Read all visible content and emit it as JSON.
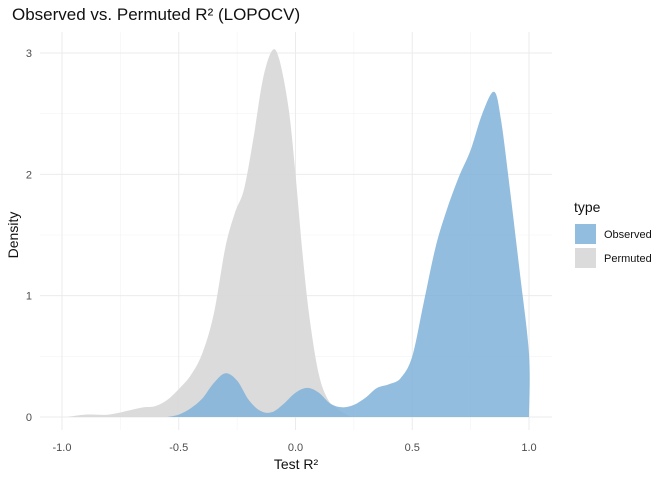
{
  "chart_data": {
    "type": "area",
    "subtype": "density",
    "title": "Observed vs. Permuted R² (LOPOCV)",
    "xlabel": "Test R²",
    "ylabel": "Density",
    "xlim": [
      -1.0,
      1.0
    ],
    "ylim": [
      0,
      3.1
    ],
    "x_ticks": [
      -1.0,
      -0.5,
      0.0,
      0.5,
      1.0
    ],
    "x_tick_labels": [
      "-1.0",
      "-0.5",
      "0.0",
      "0.5",
      "1.0"
    ],
    "y_ticks": [
      0,
      1,
      2,
      3
    ],
    "y_tick_labels": [
      "0",
      "1",
      "2",
      "3"
    ],
    "grid": true,
    "legend": {
      "title": "type",
      "position": "right"
    },
    "series": [
      {
        "name": "Permuted",
        "color": "#d9d9d9",
        "points": [
          [
            -0.98,
            0.0
          ],
          [
            -0.9,
            0.02
          ],
          [
            -0.8,
            0.02
          ],
          [
            -0.7,
            0.06
          ],
          [
            -0.65,
            0.08
          ],
          [
            -0.6,
            0.09
          ],
          [
            -0.55,
            0.14
          ],
          [
            -0.5,
            0.23
          ],
          [
            -0.45,
            0.34
          ],
          [
            -0.4,
            0.52
          ],
          [
            -0.35,
            0.85
          ],
          [
            -0.3,
            1.4
          ],
          [
            -0.26,
            1.68
          ],
          [
            -0.22,
            1.88
          ],
          [
            -0.18,
            2.3
          ],
          [
            -0.14,
            2.78
          ],
          [
            -0.1,
            3.02
          ],
          [
            -0.07,
            2.95
          ],
          [
            -0.03,
            2.55
          ],
          [
            0.0,
            2.0
          ],
          [
            0.03,
            1.35
          ],
          [
            0.06,
            0.82
          ],
          [
            0.1,
            0.35
          ],
          [
            0.14,
            0.14
          ],
          [
            0.18,
            0.07
          ],
          [
            0.2,
            0.04
          ],
          [
            0.24,
            0.0
          ]
        ]
      },
      {
        "name": "Observed",
        "color": "#7fb2d8",
        "points": [
          [
            -0.55,
            0.0
          ],
          [
            -0.5,
            0.02
          ],
          [
            -0.45,
            0.07
          ],
          [
            -0.4,
            0.15
          ],
          [
            -0.35,
            0.28
          ],
          [
            -0.3,
            0.36
          ],
          [
            -0.25,
            0.3
          ],
          [
            -0.2,
            0.14
          ],
          [
            -0.15,
            0.05
          ],
          [
            -0.1,
            0.04
          ],
          [
            -0.05,
            0.11
          ],
          [
            0.0,
            0.2
          ],
          [
            0.05,
            0.24
          ],
          [
            0.1,
            0.2
          ],
          [
            0.15,
            0.11
          ],
          [
            0.2,
            0.08
          ],
          [
            0.25,
            0.1
          ],
          [
            0.3,
            0.16
          ],
          [
            0.35,
            0.24
          ],
          [
            0.4,
            0.27
          ],
          [
            0.45,
            0.32
          ],
          [
            0.5,
            0.5
          ],
          [
            0.55,
            0.95
          ],
          [
            0.6,
            1.4
          ],
          [
            0.65,
            1.72
          ],
          [
            0.7,
            1.98
          ],
          [
            0.75,
            2.2
          ],
          [
            0.8,
            2.5
          ],
          [
            0.85,
            2.68
          ],
          [
            0.88,
            2.45
          ],
          [
            0.92,
            1.85
          ],
          [
            0.96,
            1.2
          ],
          [
            1.0,
            0.52
          ],
          [
            1.0,
            0.0
          ]
        ]
      }
    ]
  }
}
